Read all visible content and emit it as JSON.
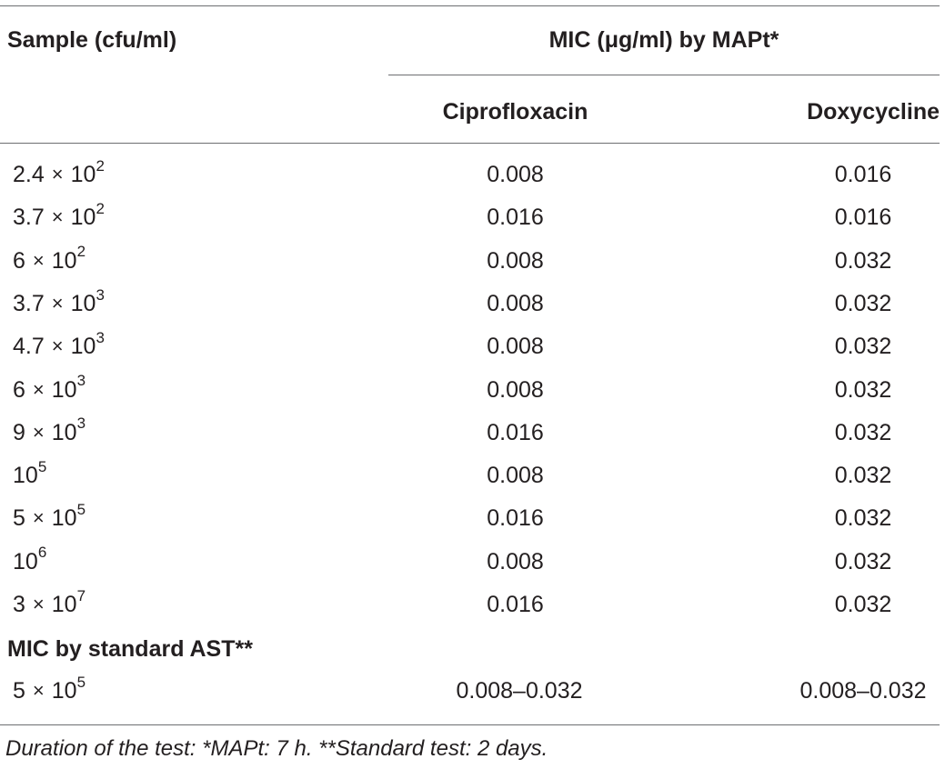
{
  "table": {
    "header": {
      "sample": "Sample (cfu/ml)",
      "group": "MIC (μg/ml) by MAPt*",
      "col1": "Ciprofloxacin",
      "col2": "Doxycycline"
    },
    "rows": [
      {
        "mantissa": "2.4",
        "times": "×",
        "base": "10",
        "exp": "2",
        "cipro": "0.008",
        "doxy": "0.016"
      },
      {
        "mantissa": "3.7",
        "times": "×",
        "base": "10",
        "exp": "2",
        "cipro": "0.016",
        "doxy": "0.016"
      },
      {
        "mantissa": "6",
        "times": "×",
        "base": "10",
        "exp": "2",
        "cipro": "0.008",
        "doxy": "0.032"
      },
      {
        "mantissa": "3.7",
        "times": "×",
        "base": "10",
        "exp": "3",
        "cipro": "0.008",
        "doxy": "0.032"
      },
      {
        "mantissa": "4.7",
        "times": "×",
        "base": "10",
        "exp": "3",
        "cipro": "0.008",
        "doxy": "0.032"
      },
      {
        "mantissa": "6",
        "times": "×",
        "base": "10",
        "exp": "3",
        "cipro": "0.008",
        "doxy": "0.032"
      },
      {
        "mantissa": "9",
        "times": "×",
        "base": "10",
        "exp": "3",
        "cipro": "0.016",
        "doxy": "0.032"
      },
      {
        "mantissa": "",
        "times": "",
        "base": "10",
        "exp": "5",
        "cipro": "0.008",
        "doxy": "0.032"
      },
      {
        "mantissa": "5",
        "times": "×",
        "base": "10",
        "exp": "5",
        "cipro": "0.016",
        "doxy": "0.032"
      },
      {
        "mantissa": "",
        "times": "",
        "base": "10",
        "exp": "6",
        "cipro": "0.008",
        "doxy": "0.032"
      },
      {
        "mantissa": "3",
        "times": "×",
        "base": "10",
        "exp": "7",
        "cipro": "0.016",
        "doxy": "0.032"
      }
    ],
    "standard_section": {
      "label": "MIC by standard AST**",
      "row": {
        "mantissa": "5",
        "times": "×",
        "base": "10",
        "exp": "5",
        "cipro": "0.008–0.032",
        "doxy": "0.008–0.032"
      }
    },
    "footnote": "Duration of the test: *MAPt: 7 h. **Standard test: 2 days."
  }
}
